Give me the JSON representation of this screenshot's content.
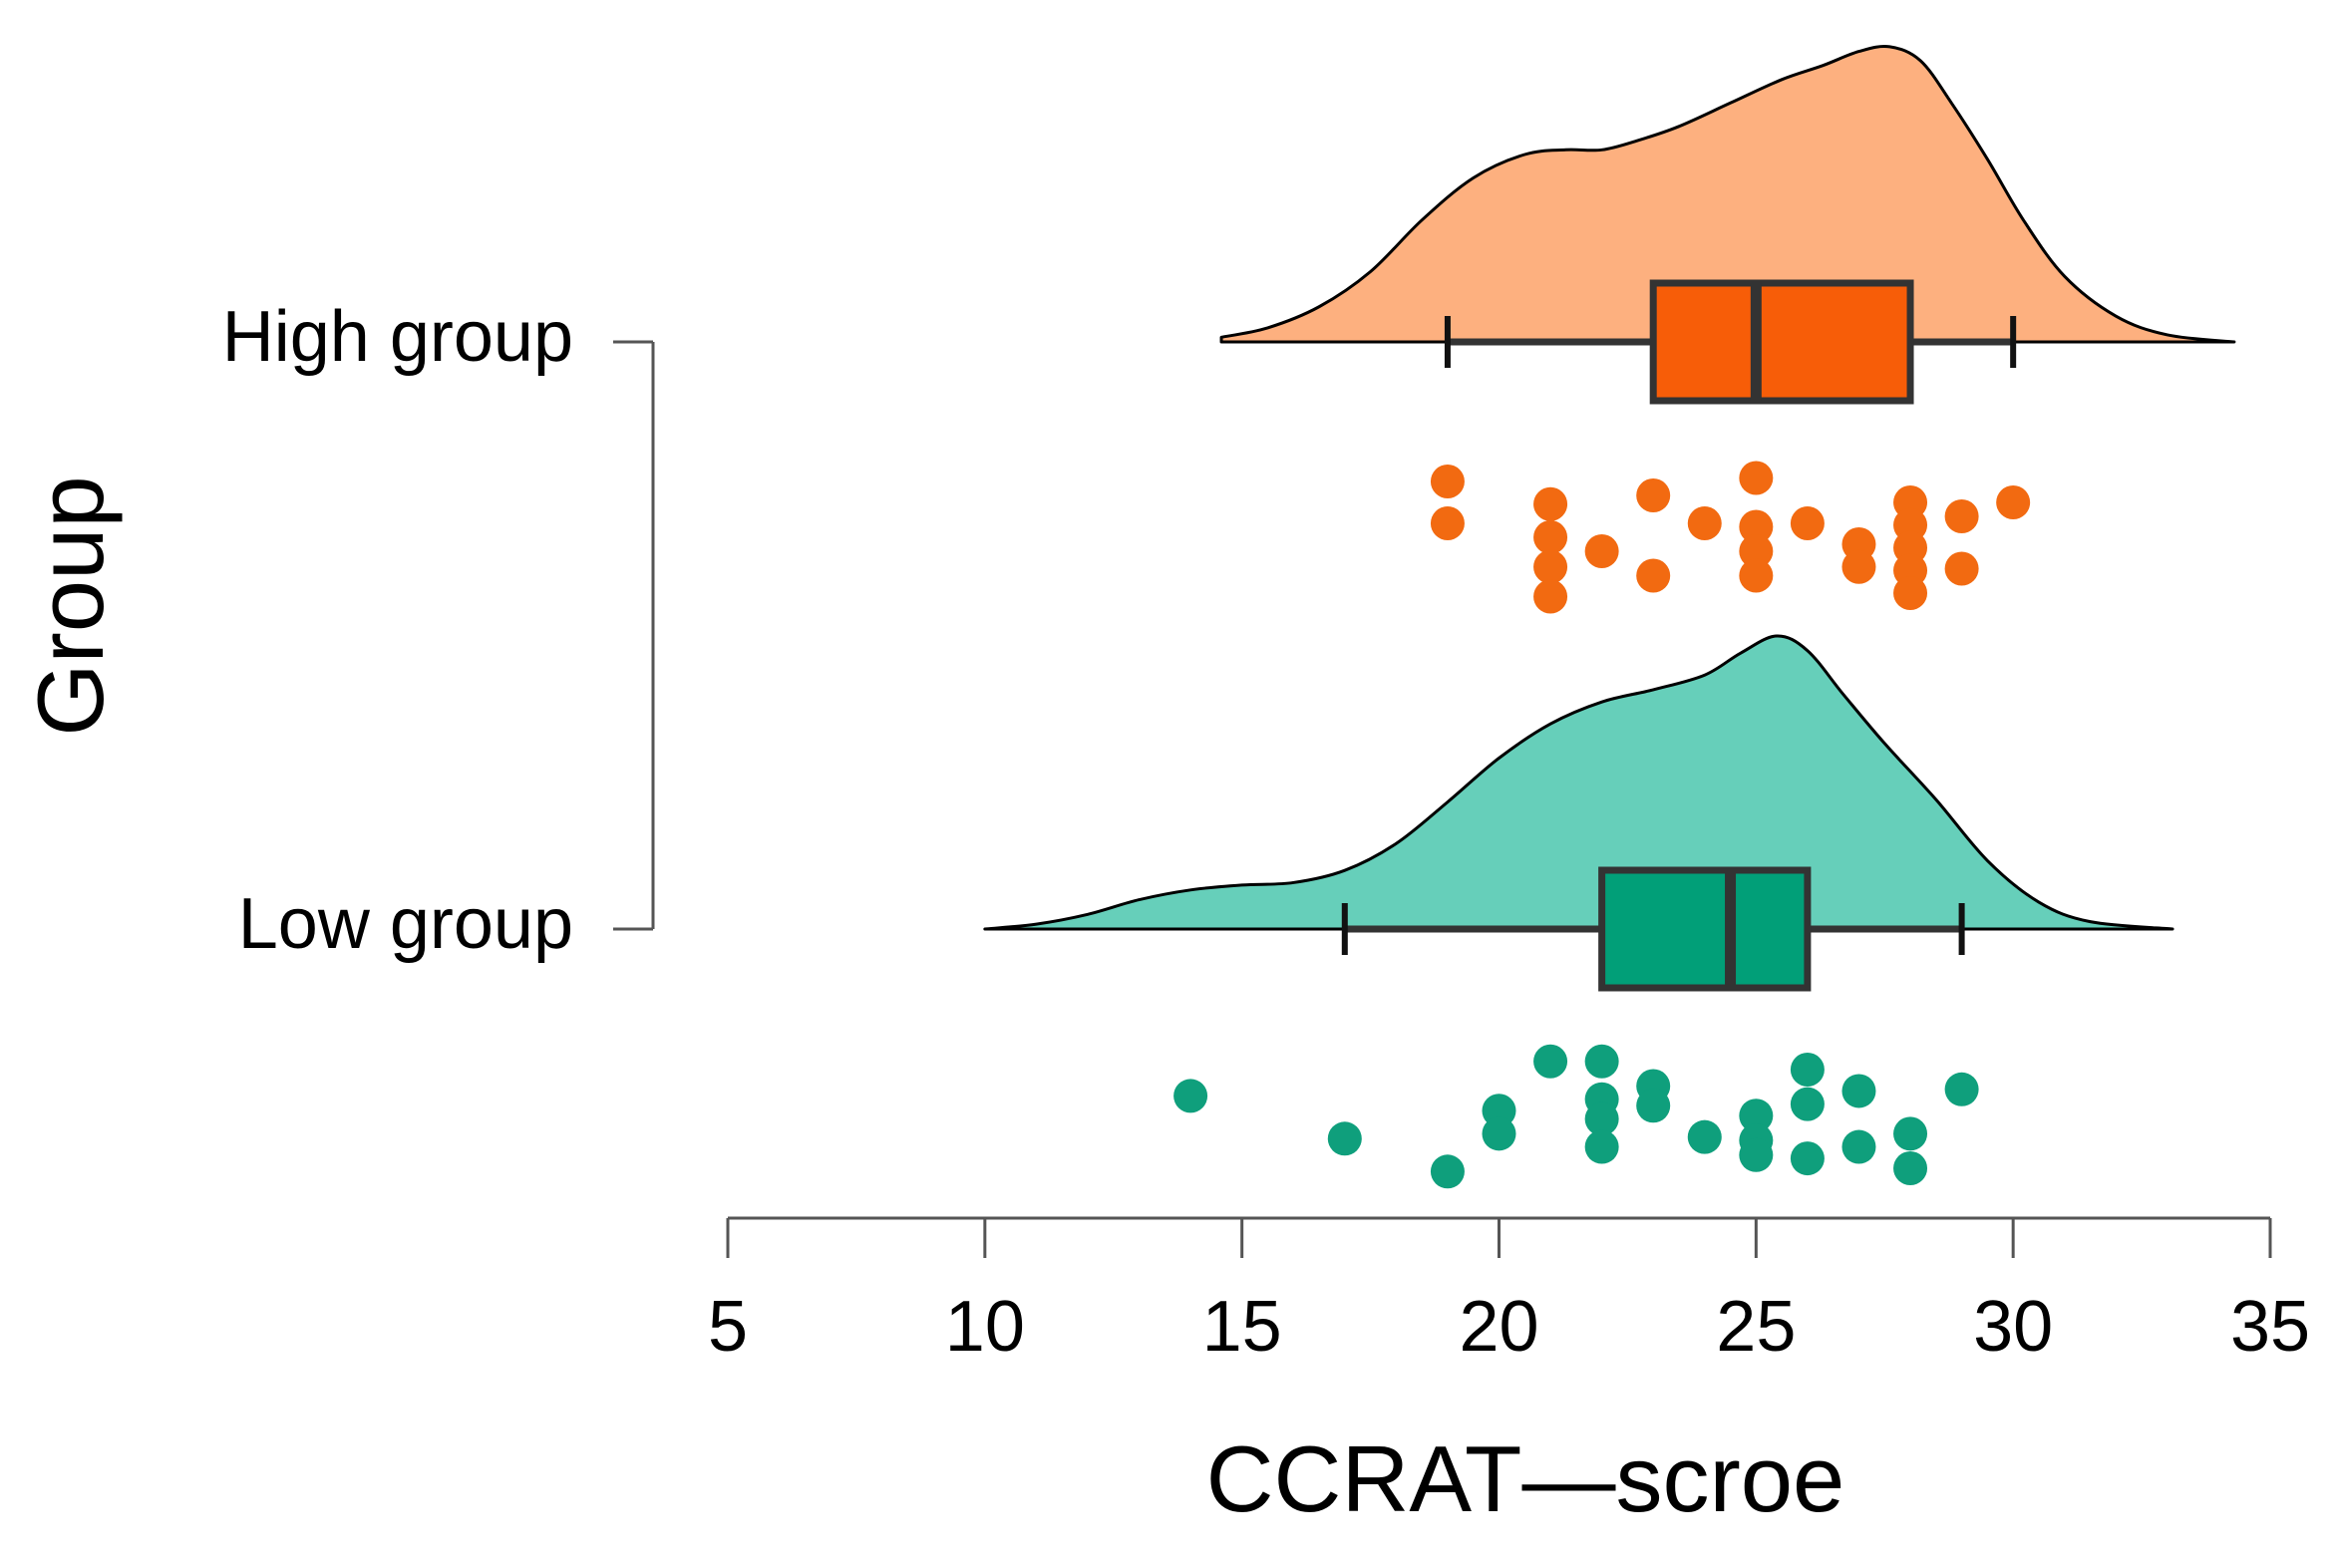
{
  "chart_data": {
    "type": "raincloud",
    "xlabel": "CCRAT—scroe",
    "ylabel": "Group",
    "xlim": [
      5,
      35
    ],
    "xticks": [
      5,
      10,
      15,
      20,
      25,
      30,
      35
    ],
    "xtick_labels": [
      "5",
      "10",
      "15",
      "20",
      "25",
      "30",
      "35"
    ],
    "grid": false,
    "groups": [
      {
        "name": "High group",
        "color_fill": "#FDB07F",
        "color_box": "#F75D08",
        "color_points": "#F26A11",
        "box": {
          "whisker_low": 19,
          "q1": 23,
          "median": 25,
          "q3": 28,
          "whisker_high": 30
        },
        "density": {
          "x": [
            14.6,
            15.5,
            16.5,
            17.5,
            18.5,
            19.5,
            20.5,
            21.3,
            22.0,
            22.7,
            23.5,
            24.5,
            25.5,
            26.3,
            27.0,
            27.6,
            28.2,
            28.8,
            29.5,
            30.2,
            31.0,
            32.0,
            33.0,
            34.3
          ],
          "y": [
            0.02,
            0.06,
            0.15,
            0.3,
            0.52,
            0.7,
            0.8,
            0.82,
            0.82,
            0.86,
            0.92,
            1.02,
            1.12,
            1.18,
            1.24,
            1.26,
            1.2,
            1.02,
            0.78,
            0.52,
            0.28,
            0.11,
            0.03,
            0.0
          ]
        },
        "points": [
          {
            "x": 19,
            "j": 0.16
          },
          {
            "x": 19,
            "j": 0.4
          },
          {
            "x": 21,
            "j": 0.29
          },
          {
            "x": 21,
            "j": 0.48
          },
          {
            "x": 21,
            "j": 0.65
          },
          {
            "x": 21,
            "j": 0.82
          },
          {
            "x": 22,
            "j": 0.56
          },
          {
            "x": 23,
            "j": 0.24
          },
          {
            "x": 23,
            "j": 0.7
          },
          {
            "x": 24,
            "j": 0.4
          },
          {
            "x": 25,
            "j": 0.14
          },
          {
            "x": 25,
            "j": 0.42
          },
          {
            "x": 25,
            "j": 0.56
          },
          {
            "x": 25,
            "j": 0.7
          },
          {
            "x": 26,
            "j": 0.4
          },
          {
            "x": 27,
            "j": 0.52
          },
          {
            "x": 27,
            "j": 0.65
          },
          {
            "x": 28,
            "j": 0.28
          },
          {
            "x": 28,
            "j": 0.41
          },
          {
            "x": 28,
            "j": 0.54
          },
          {
            "x": 28,
            "j": 0.67
          },
          {
            "x": 28,
            "j": 0.8
          },
          {
            "x": 29,
            "j": 0.36
          },
          {
            "x": 29,
            "j": 0.66
          },
          {
            "x": 30,
            "j": 0.28
          }
        ]
      },
      {
        "name": "Low group",
        "color_fill": "#66CFBA",
        "color_box": "#019F78",
        "color_points": "#0F9F7C",
        "box": {
          "whisker_low": 17,
          "q1": 22,
          "median": 24.5,
          "q3": 26,
          "whisker_high": 29
        },
        "density": {
          "x": [
            10.0,
            11.0,
            12.0,
            13.0,
            14.0,
            15.0,
            16.0,
            17.0,
            18.0,
            19.0,
            20.0,
            21.0,
            22.0,
            23.0,
            24.0,
            24.7,
            25.4,
            26.0,
            26.7,
            27.5,
            28.5,
            29.5,
            30.5,
            31.5,
            33.1
          ],
          "y": [
            0.0,
            0.02,
            0.06,
            0.12,
            0.16,
            0.18,
            0.19,
            0.24,
            0.35,
            0.52,
            0.7,
            0.84,
            0.93,
            0.98,
            1.04,
            1.13,
            1.2,
            1.14,
            0.96,
            0.76,
            0.53,
            0.28,
            0.11,
            0.03,
            0.0
          ]
        },
        "points": [
          {
            "x": 14,
            "j": 0.36
          },
          {
            "x": 17,
            "j": 0.62
          },
          {
            "x": 19,
            "j": 0.82
          },
          {
            "x": 20,
            "j": 0.45
          },
          {
            "x": 20,
            "j": 0.59
          },
          {
            "x": 21,
            "j": 0.15
          },
          {
            "x": 22,
            "j": 0.15
          },
          {
            "x": 22,
            "j": 0.38
          },
          {
            "x": 22,
            "j": 0.5
          },
          {
            "x": 22,
            "j": 0.67
          },
          {
            "x": 23,
            "j": 0.3
          },
          {
            "x": 23,
            "j": 0.42
          },
          {
            "x": 24,
            "j": 0.61
          },
          {
            "x": 25,
            "j": 0.48
          },
          {
            "x": 25,
            "j": 0.63
          },
          {
            "x": 25,
            "j": 0.72
          },
          {
            "x": 26,
            "j": 0.2
          },
          {
            "x": 26,
            "j": 0.41
          },
          {
            "x": 26,
            "j": 0.74
          },
          {
            "x": 27,
            "j": 0.33
          },
          {
            "x": 27,
            "j": 0.67
          },
          {
            "x": 28,
            "j": 0.59
          },
          {
            "x": 28,
            "j": 0.8
          },
          {
            "x": 29,
            "j": 0.32
          }
        ]
      }
    ]
  }
}
